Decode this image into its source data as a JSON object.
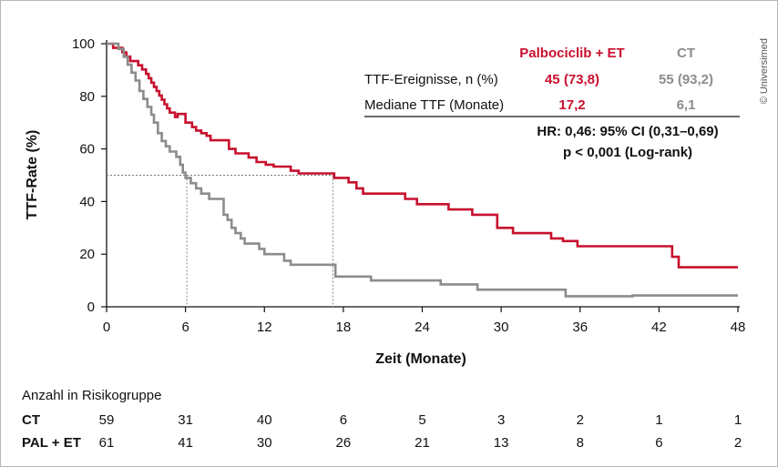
{
  "copyright": "© Universimed",
  "chart_data": {
    "type": "line",
    "xlabel": "Zeit (Monate)",
    "ylabel": "TTF-Rate (%)",
    "xlim": [
      0,
      48
    ],
    "ylim": [
      0,
      100
    ],
    "xticks": [
      0,
      6,
      12,
      18,
      24,
      30,
      36,
      42,
      48
    ],
    "yticks": [
      0,
      20,
      40,
      60,
      80,
      100
    ],
    "colors": {
      "pal": "#c8102e",
      "ct": "#8c8c8c"
    },
    "series": [
      {
        "key": "pal",
        "name": "Palbociclib + ET",
        "step_points": [
          [
            0,
            100
          ],
          [
            0.5,
            100
          ],
          [
            0.5,
            98.4
          ],
          [
            1.2,
            98.4
          ],
          [
            1.2,
            96.7
          ],
          [
            1.5,
            96.7
          ],
          [
            1.5,
            95.1
          ],
          [
            1.8,
            95.1
          ],
          [
            1.8,
            93.4
          ],
          [
            2.4,
            93.4
          ],
          [
            2.4,
            91.8
          ],
          [
            2.7,
            91.8
          ],
          [
            2.7,
            90.2
          ],
          [
            3.0,
            90.2
          ],
          [
            3.0,
            88.5
          ],
          [
            3.2,
            88.5
          ],
          [
            3.2,
            86.9
          ],
          [
            3.4,
            86.9
          ],
          [
            3.4,
            85.2
          ],
          [
            3.6,
            85.2
          ],
          [
            3.6,
            83.6
          ],
          [
            3.8,
            83.6
          ],
          [
            3.8,
            82.0
          ],
          [
            4.0,
            82.0
          ],
          [
            4.0,
            80.3
          ],
          [
            4.2,
            80.3
          ],
          [
            4.2,
            78.7
          ],
          [
            4.4,
            78.7
          ],
          [
            4.4,
            77.0
          ],
          [
            4.6,
            77.0
          ],
          [
            4.6,
            75.4
          ],
          [
            4.8,
            75.4
          ],
          [
            4.8,
            73.8
          ],
          [
            5.2,
            73.8
          ],
          [
            5.2,
            72.1
          ],
          [
            5.4,
            72.1
          ],
          [
            5.4,
            73.3
          ],
          [
            6.0,
            73.3
          ],
          [
            6.0,
            70.0
          ],
          [
            6.5,
            70.0
          ],
          [
            6.5,
            68.3
          ],
          [
            6.8,
            68.3
          ],
          [
            6.8,
            67.0
          ],
          [
            7.2,
            67.0
          ],
          [
            7.2,
            66.0
          ],
          [
            7.6,
            66.0
          ],
          [
            7.6,
            65.0
          ],
          [
            7.9,
            65.0
          ],
          [
            7.9,
            63.3
          ],
          [
            9.3,
            63.3
          ],
          [
            9.3,
            60.0
          ],
          [
            9.8,
            60.0
          ],
          [
            9.8,
            58.3
          ],
          [
            10.8,
            58.3
          ],
          [
            10.8,
            56.7
          ],
          [
            11.4,
            56.7
          ],
          [
            11.4,
            55.0
          ],
          [
            12.1,
            55.0
          ],
          [
            12.1,
            54.0
          ],
          [
            12.7,
            54.0
          ],
          [
            12.7,
            53.3
          ],
          [
            14.0,
            53.3
          ],
          [
            14.0,
            51.7
          ],
          [
            14.6,
            51.7
          ],
          [
            14.6,
            50.7
          ],
          [
            17.3,
            50.7
          ],
          [
            17.3,
            49.0
          ],
          [
            18.4,
            49.0
          ],
          [
            18.4,
            47.3
          ],
          [
            19.0,
            47.3
          ],
          [
            19.0,
            45.0
          ],
          [
            19.5,
            45.0
          ],
          [
            19.5,
            43.0
          ],
          [
            22.7,
            43.0
          ],
          [
            22.7,
            41.0
          ],
          [
            23.6,
            41.0
          ],
          [
            23.6,
            39.0
          ],
          [
            26.0,
            39.0
          ],
          [
            26.0,
            37.0
          ],
          [
            27.8,
            37.0
          ],
          [
            27.8,
            35.0
          ],
          [
            29.7,
            35.0
          ],
          [
            29.7,
            30.0
          ],
          [
            30.9,
            30.0
          ],
          [
            30.9,
            28.0
          ],
          [
            33.8,
            28.0
          ],
          [
            33.8,
            26.0
          ],
          [
            34.7,
            26.0
          ],
          [
            34.7,
            25.0
          ],
          [
            35.8,
            25.0
          ],
          [
            35.8,
            23.0
          ],
          [
            43.0,
            23.0
          ],
          [
            43.0,
            19.0
          ],
          [
            43.5,
            19.0
          ],
          [
            43.5,
            15.0
          ],
          [
            48.0,
            15.0
          ]
        ]
      },
      {
        "key": "ct",
        "name": "CT",
        "step_points": [
          [
            0,
            100
          ],
          [
            0.9,
            100
          ],
          [
            0.9,
            98.0
          ],
          [
            1.3,
            98.0
          ],
          [
            1.3,
            95.0
          ],
          [
            1.6,
            95.0
          ],
          [
            1.6,
            92.0
          ],
          [
            1.9,
            92.0
          ],
          [
            1.9,
            89.0
          ],
          [
            2.2,
            89.0
          ],
          [
            2.2,
            86.0
          ],
          [
            2.5,
            86.0
          ],
          [
            2.5,
            82.0
          ],
          [
            2.8,
            82.0
          ],
          [
            2.8,
            79.0
          ],
          [
            3.1,
            79.0
          ],
          [
            3.1,
            76.0
          ],
          [
            3.4,
            76.0
          ],
          [
            3.4,
            73.0
          ],
          [
            3.6,
            73.0
          ],
          [
            3.6,
            70.0
          ],
          [
            3.9,
            70.0
          ],
          [
            3.9,
            66.0
          ],
          [
            4.2,
            66.0
          ],
          [
            4.2,
            63.0
          ],
          [
            4.5,
            63.0
          ],
          [
            4.5,
            61.0
          ],
          [
            4.8,
            61.0
          ],
          [
            4.8,
            59.0
          ],
          [
            5.3,
            59.0
          ],
          [
            5.3,
            57.0
          ],
          [
            5.6,
            57.0
          ],
          [
            5.6,
            54.0
          ],
          [
            5.8,
            54.0
          ],
          [
            5.8,
            51.0
          ],
          [
            6.0,
            51.0
          ],
          [
            6.0,
            49.0
          ],
          [
            6.4,
            49.0
          ],
          [
            6.4,
            47.0
          ],
          [
            6.8,
            47.0
          ],
          [
            6.8,
            45.0
          ],
          [
            7.2,
            45.0
          ],
          [
            7.2,
            43.0
          ],
          [
            7.8,
            43.0
          ],
          [
            7.8,
            41.0
          ],
          [
            8.9,
            41.0
          ],
          [
            8.9,
            35.0
          ],
          [
            9.2,
            35.0
          ],
          [
            9.2,
            33.0
          ],
          [
            9.5,
            33.0
          ],
          [
            9.5,
            30.0
          ],
          [
            9.8,
            30.0
          ],
          [
            9.8,
            28.0
          ],
          [
            10.2,
            28.0
          ],
          [
            10.2,
            26.0
          ],
          [
            10.5,
            26.0
          ],
          [
            10.5,
            24.0
          ],
          [
            11.6,
            24.0
          ],
          [
            11.6,
            22.0
          ],
          [
            12.0,
            22.0
          ],
          [
            12.0,
            20.0
          ],
          [
            13.5,
            20.0
          ],
          [
            13.5,
            17.5
          ],
          [
            14.0,
            17.5
          ],
          [
            14.0,
            16.0
          ],
          [
            17.4,
            16.0
          ],
          [
            17.4,
            11.5
          ],
          [
            20.1,
            11.5
          ],
          [
            20.1,
            10.0
          ],
          [
            25.4,
            10.0
          ],
          [
            25.4,
            8.5
          ],
          [
            28.2,
            8.5
          ],
          [
            28.2,
            6.5
          ],
          [
            34.9,
            6.5
          ],
          [
            34.9,
            4.0
          ],
          [
            40.0,
            4.0
          ],
          [
            40.0,
            4.3
          ],
          [
            48.0,
            4.3
          ]
        ]
      }
    ],
    "median_marks": [
      {
        "series": "ct",
        "x": 6.1,
        "y": 50
      },
      {
        "series": "pal",
        "x": 17.2,
        "y": 50
      }
    ]
  },
  "stats_table": {
    "head_pal": "Palbociclib + ET",
    "head_ct": "CT",
    "row1_label": "TTF-Ereignisse, n (%)",
    "row1_pal": "45 (73,8)",
    "row1_ct": "55 (93,2)",
    "row2_label": "Mediane TTF (Monate)",
    "row2_pal": "17,2",
    "row2_ct": "6,1",
    "hr": "HR: 0,46: 95% CI (0,31–0,69)",
    "p": "p < 0,001 (Log-rank)"
  },
  "risk_table": {
    "title": "Anzahl in Risikogruppe",
    "rows": [
      {
        "key": "ct",
        "label": "CT",
        "values": [
          "59",
          "31",
          "40",
          "6",
          "5",
          "3",
          "2",
          "1",
          "1"
        ]
      },
      {
        "key": "pal",
        "label": "PAL + ET",
        "values": [
          "61",
          "41",
          "30",
          "26",
          "21",
          "13",
          "8",
          "6",
          "2"
        ]
      }
    ]
  }
}
